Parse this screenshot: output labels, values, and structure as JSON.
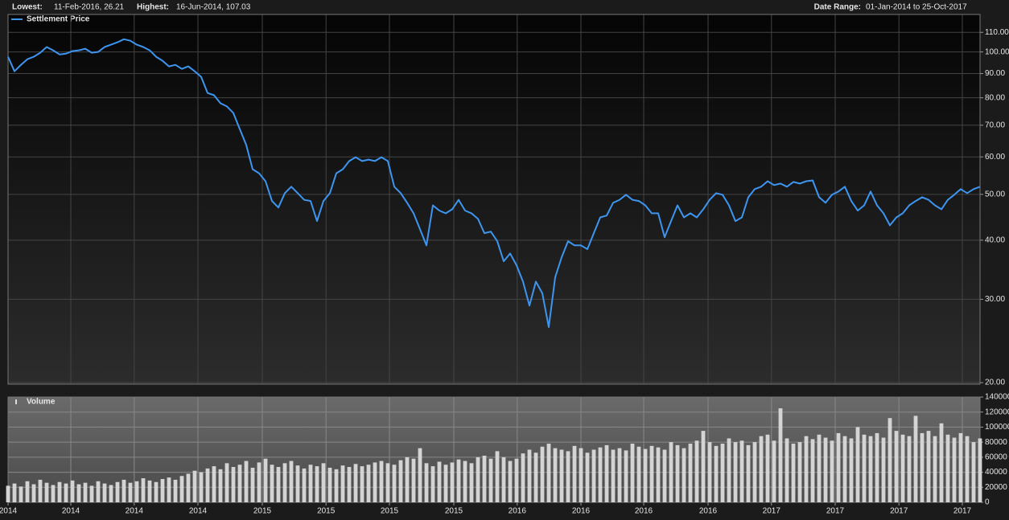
{
  "header": {
    "lowest_label": "Lowest:",
    "lowest": "11-Feb-2016, 26.21",
    "highest_label": "Highest:",
    "highest": "16-Jun-2014, 107.03",
    "range_label": "Date Range:",
    "range": "01-Jan-2014 to 25-Oct-2017"
  },
  "chart_data": [
    {
      "type": "line",
      "log_y": true,
      "grid": true,
      "series": [
        {
          "name": "Settlement Price",
          "color": "#3d95f0",
          "values": [
            97.7,
            91.0,
            93.9,
            96.5,
            97.7,
            99.6,
            102.4,
            100.8,
            98.8,
            99.2,
            100.4,
            100.8,
            101.6,
            99.6,
            100,
            102.4,
            103.6,
            104.8,
            106.4,
            105.6,
            103.6,
            102.4,
            100.8,
            97.7,
            95.8,
            93.2,
            93.9,
            92.1,
            93.2,
            91.0,
            88.6,
            81.9,
            81.0,
            77.9,
            76.7,
            74.3,
            68.7,
            63.6,
            56.5,
            55.4,
            53.3,
            48.4,
            46.9,
            50.3,
            51.9,
            50.3,
            48.7,
            48.4,
            43.9,
            48.4,
            50.3,
            55.4,
            56.5,
            58.8,
            59.9,
            58.8,
            59.2,
            58.8,
            59.9,
            58.8,
            51.9,
            50.3,
            48.0,
            45.6,
            42.2,
            39.0,
            47.4,
            46.2,
            45.6,
            46.5,
            48.7,
            46.2,
            45.6,
            44.4,
            41.4,
            41.7,
            39.8,
            36.1,
            37.5,
            35.4,
            32.7,
            29.1,
            32.7,
            30.9,
            26.2,
            33.4,
            36.8,
            39.8,
            39.0,
            39.0,
            38.3,
            41.4,
            44.7,
            45.1,
            48.0,
            48.7,
            49.9,
            48.7,
            48.4,
            47.4,
            45.6,
            45.6,
            40.6,
            43.9,
            47.4,
            44.7,
            45.6,
            44.7,
            46.5,
            48.7,
            50.3,
            49.9,
            47.4,
            43.9,
            44.7,
            49.3,
            51.3,
            51.9,
            53.3,
            52.3,
            52.7,
            51.9,
            53.1,
            52.7,
            53.3,
            53.5,
            49.3,
            48.0,
            49.9,
            50.7,
            51.9,
            48.4,
            46.2,
            47.4,
            50.7,
            47.4,
            45.6,
            43.0,
            44.7,
            45.6,
            47.4,
            48.4,
            49.3,
            48.7,
            47.4,
            46.5,
            48.7,
            49.9,
            51.3,
            50.3,
            51.3,
            51.9
          ]
        }
      ],
      "xlim": [
        0,
        151
      ],
      "ylim": [
        19.85,
        120
      ],
      "yticks": [
        {
          "value": 20,
          "label": "20.00"
        },
        {
          "value": 30,
          "label": "30.00"
        },
        {
          "value": 40,
          "label": "40.00"
        },
        {
          "value": 50,
          "label": "50.00"
        },
        {
          "value": 60,
          "label": "60.00"
        },
        {
          "value": 70,
          "label": "70.00"
        },
        {
          "value": 80,
          "label": "80.00"
        },
        {
          "value": 90,
          "label": "90.00"
        },
        {
          "value": 100,
          "label": "100.00"
        },
        {
          "value": 110,
          "label": "110.00"
        }
      ],
      "xticks": [
        {
          "value": 0,
          "label": "2014"
        },
        {
          "value": 9.75,
          "label": "2014"
        },
        {
          "value": 19.6,
          "label": "2014"
        },
        {
          "value": 29.5,
          "label": "2014"
        },
        {
          "value": 39.5,
          "label": "2015"
        },
        {
          "value": 49.4,
          "label": "2015"
        },
        {
          "value": 59.25,
          "label": "2015"
        },
        {
          "value": 69.25,
          "label": "2015"
        },
        {
          "value": 79.1,
          "label": "2016"
        },
        {
          "value": 89,
          "label": "2016"
        },
        {
          "value": 98.75,
          "label": "2016"
        },
        {
          "value": 108.75,
          "label": "2016"
        },
        {
          "value": 118.6,
          "label": "2017"
        },
        {
          "value": 128.5,
          "label": "2017"
        },
        {
          "value": 138.4,
          "label": "2017"
        },
        {
          "value": 148.25,
          "label": "2017"
        }
      ]
    },
    {
      "type": "bar",
      "grid": true,
      "series": [
        {
          "name": "Volume",
          "color": "#d4d4d4",
          "values": [
            22000,
            25000,
            21000,
            28000,
            24000,
            30000,
            26000,
            23000,
            27000,
            25000,
            29000,
            24000,
            26000,
            22000,
            28000,
            25000,
            23000,
            27000,
            30000,
            26000,
            28000,
            32000,
            29000,
            27000,
            31000,
            33000,
            30000,
            35000,
            38000,
            42000,
            40000,
            45000,
            48000,
            44000,
            52000,
            47000,
            50000,
            55000,
            46000,
            53000,
            58000,
            50000,
            47000,
            52000,
            55000,
            49000,
            45000,
            50000,
            48000,
            52000,
            46000,
            44000,
            49000,
            47000,
            51000,
            48000,
            50000,
            53000,
            55000,
            52000,
            50000,
            56000,
            60000,
            58000,
            72000,
            52000,
            48000,
            54000,
            50000,
            53000,
            57000,
            55000,
            52000,
            60000,
            62000,
            58000,
            68000,
            60000,
            55000,
            58000,
            65000,
            70000,
            66000,
            74000,
            78000,
            72000,
            70000,
            68000,
            75000,
            72000,
            66000,
            70000,
            73000,
            76000,
            70000,
            72000,
            69000,
            78000,
            74000,
            71000,
            75000,
            73000,
            70000,
            80000,
            76000,
            72000,
            78000,
            82000,
            95000,
            80000,
            75000,
            78000,
            85000,
            80000,
            82000,
            76000,
            80000,
            88000,
            90000,
            82000,
            125000,
            85000,
            78000,
            80000,
            88000,
            84000,
            90000,
            86000,
            82000,
            92000,
            88000,
            85000,
            100000,
            90000,
            88000,
            92000,
            86000,
            112000,
            95000,
            90000,
            88000,
            115000,
            92000,
            95000,
            88000,
            105000,
            90000,
            86000,
            92000,
            88000,
            80000,
            85000
          ]
        }
      ],
      "xlim": [
        0,
        151
      ],
      "ylim": [
        0,
        140000
      ],
      "yticks": [
        0,
        20000,
        40000,
        60000,
        80000,
        100000,
        120000,
        140000
      ]
    }
  ]
}
